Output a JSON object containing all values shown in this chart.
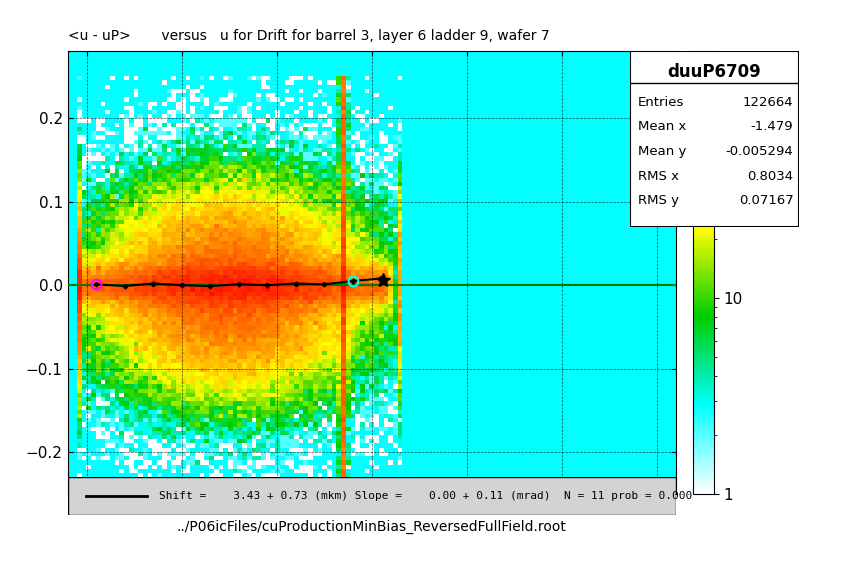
{
  "title": "<u - uP>       versus   u for Drift for barrel 3, layer 6 ladder 9, wafer 7",
  "xlabel": "../P06icFiles/cuProductionMinBias_ReversedFullField.root",
  "xlim": [
    -3.2,
    3.2
  ],
  "ylim": [
    -0.25,
    0.28
  ],
  "stats_title": "duuP6709",
  "entries": "122664",
  "mean_x": "-1.479",
  "mean_y": "-0.005294",
  "rms_x": "0.8034",
  "rms_y": "0.07167",
  "legend_text": "Shift =    3.43 + 0.73 (mkm) Slope =    0.00 + 0.11 (mrad)  N = 11 prob = 0.000",
  "colorbar_ticks": [
    1,
    10
  ],
  "background_color": "#ffffff"
}
